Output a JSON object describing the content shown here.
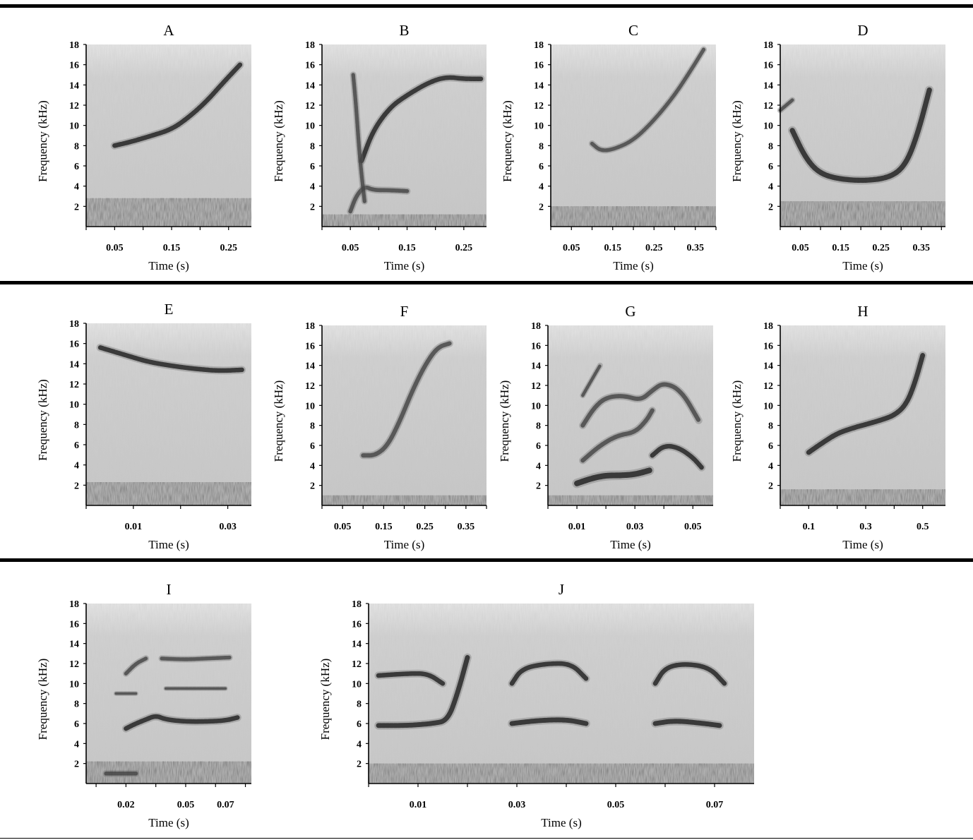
{
  "chart_data": [
    {
      "type": "heatmap",
      "panel": "A",
      "title": "A",
      "xlabel": "Time (s)",
      "ylabel": "Frequency (kHz)",
      "ylim": [
        0,
        18
      ],
      "xlim": [
        0,
        0.29
      ],
      "x_ticks": [
        0.05,
        0.15,
        0.25
      ],
      "x_tick_labels": [
        "0.05",
        "0.15",
        "0.25"
      ],
      "y_ticks": [
        2,
        4,
        6,
        8,
        10,
        12,
        14,
        16,
        18
      ],
      "traces": [
        {
          "points": [
            [
              0.05,
              8.0
            ],
            [
              0.08,
              8.4
            ],
            [
              0.11,
              8.9
            ],
            [
              0.15,
              9.6
            ],
            [
              0.18,
              10.8
            ],
            [
              0.21,
              12.3
            ],
            [
              0.24,
              14.2
            ],
            [
              0.27,
              16.0
            ]
          ],
          "weight": 1
        }
      ],
      "noise_band": [
        0,
        2.8
      ]
    },
    {
      "type": "heatmap",
      "panel": "B",
      "title": "B",
      "xlabel": "Time (s)",
      "ylabel": "Frequency (kHz)",
      "ylim": [
        0,
        18
      ],
      "xlim": [
        0,
        0.29
      ],
      "x_ticks": [
        0.05,
        0.15,
        0.25
      ],
      "x_tick_labels": [
        "0.05",
        "0.15",
        "0.25"
      ],
      "y_ticks": [
        2,
        4,
        6,
        8,
        10,
        12,
        14,
        16,
        18
      ],
      "traces": [
        {
          "points": [
            [
              0.07,
              6.5
            ],
            [
              0.09,
              9.5
            ],
            [
              0.12,
              11.8
            ],
            [
              0.15,
              13.0
            ],
            [
              0.19,
              14.3
            ],
            [
              0.22,
              14.8
            ],
            [
              0.25,
              14.6
            ],
            [
              0.28,
              14.6
            ]
          ],
          "weight": 1
        },
        {
          "points": [
            [
              0.05,
              1.5
            ],
            [
              0.06,
              3.0
            ],
            [
              0.075,
              4.0
            ],
            [
              0.09,
              3.6
            ],
            [
              0.12,
              3.6
            ],
            [
              0.15,
              3.5
            ]
          ],
          "weight": 0.8
        },
        {
          "points": [
            [
              0.055,
              15.0
            ],
            [
              0.06,
              12.0
            ],
            [
              0.065,
              8.0
            ],
            [
              0.07,
              5.0
            ],
            [
              0.075,
              2.5
            ]
          ],
          "weight": 0.7
        }
      ],
      "noise_band": [
        0,
        1.2
      ]
    },
    {
      "type": "heatmap",
      "panel": "C",
      "title": "C",
      "xlabel": "Time (s)",
      "ylabel": "Frequency (kHz)",
      "ylim": [
        0,
        18
      ],
      "xlim": [
        0,
        0.4
      ],
      "x_ticks": [
        0.05,
        0.15,
        0.25,
        0.35
      ],
      "x_tick_labels": [
        "0.05",
        "0.15",
        "0.25",
        "0.35"
      ],
      "y_ticks": [
        2,
        4,
        6,
        8,
        10,
        12,
        14,
        16,
        18
      ],
      "traces": [
        {
          "points": [
            [
              0.1,
              8.2
            ],
            [
              0.12,
              7.5
            ],
            [
              0.15,
              7.6
            ],
            [
              0.2,
              8.5
            ],
            [
              0.25,
              10.5
            ],
            [
              0.3,
              13.0
            ],
            [
              0.34,
              15.5
            ],
            [
              0.37,
              17.5
            ]
          ],
          "weight": 0.7
        }
      ],
      "noise_band": [
        0,
        2.0
      ]
    },
    {
      "type": "heatmap",
      "panel": "D",
      "title": "D",
      "xlabel": "Time (s)",
      "ylabel": "Frequency (kHz)",
      "ylim": [
        0,
        18
      ],
      "xlim": [
        0,
        0.41
      ],
      "x_ticks": [
        0.05,
        0.15,
        0.25,
        0.35
      ],
      "x_tick_labels": [
        "0.05",
        "0.15",
        "0.25",
        "0.35"
      ],
      "y_ticks": [
        2,
        4,
        6,
        8,
        10,
        12,
        14,
        16,
        18
      ],
      "traces": [
        {
          "points": [
            [
              0.03,
              9.5
            ],
            [
              0.06,
              7.0
            ],
            [
              0.09,
              5.5
            ],
            [
              0.13,
              4.8
            ],
            [
              0.2,
              4.5
            ],
            [
              0.27,
              4.8
            ],
            [
              0.31,
              6.0
            ],
            [
              0.34,
              9.0
            ],
            [
              0.37,
              13.5
            ]
          ],
          "weight": 1.2
        },
        {
          "points": [
            [
              0.0,
              11.5
            ],
            [
              0.03,
              12.5
            ]
          ],
          "weight": 0.6
        }
      ],
      "noise_band": [
        0,
        2.5
      ]
    },
    {
      "type": "heatmap",
      "panel": "E",
      "title": "E",
      "xlabel": "Time (s)",
      "ylabel": "Frequency (kHz)",
      "ylim": [
        0,
        18
      ],
      "xlim": [
        0,
        0.035
      ],
      "x_ticks": [
        0.01,
        0.03
      ],
      "x_tick_labels": [
        "0.01",
        "0.03"
      ],
      "y_ticks": [
        2,
        4,
        6,
        8,
        10,
        12,
        14,
        16,
        18
      ],
      "traces": [
        {
          "points": [
            [
              0.003,
              15.6
            ],
            [
              0.008,
              14.9
            ],
            [
              0.013,
              14.2
            ],
            [
              0.018,
              13.8
            ],
            [
              0.023,
              13.5
            ],
            [
              0.028,
              13.3
            ],
            [
              0.033,
              13.4
            ]
          ],
          "weight": 1
        }
      ],
      "noise_band": [
        0,
        2.3
      ]
    },
    {
      "type": "heatmap",
      "panel": "F",
      "title": "F",
      "xlabel": "Time (s)",
      "ylabel": "Frequency (kHz)",
      "ylim": [
        0,
        18
      ],
      "xlim": [
        0,
        0.4
      ],
      "x_ticks": [
        0.05,
        0.15,
        0.25,
        0.35
      ],
      "x_tick_labels": [
        "0.05",
        "0.15",
        "0.25",
        "0.35"
      ],
      "y_ticks": [
        2,
        4,
        6,
        8,
        10,
        12,
        14,
        16,
        18
      ],
      "traces": [
        {
          "points": [
            [
              0.1,
              5.0
            ],
            [
              0.13,
              5.0
            ],
            [
              0.16,
              6.0
            ],
            [
              0.19,
              8.5
            ],
            [
              0.22,
              11.5
            ],
            [
              0.25,
              14.0
            ],
            [
              0.28,
              15.8
            ],
            [
              0.31,
              16.2
            ]
          ],
          "weight": 0.9
        }
      ],
      "noise_band": [
        0,
        1.0
      ]
    },
    {
      "type": "heatmap",
      "panel": "G",
      "title": "G",
      "xlabel": "Time (s)",
      "ylabel": "Frequency (kHz)",
      "ylim": [
        0,
        18
      ],
      "xlim": [
        0,
        0.057
      ],
      "x_ticks": [
        0.01,
        0.03,
        0.05
      ],
      "x_tick_labels": [
        "0.01",
        "0.03",
        "0.05"
      ],
      "y_ticks": [
        2,
        4,
        6,
        8,
        10,
        12,
        14,
        16,
        18
      ],
      "traces": [
        {
          "points": [
            [
              0.01,
              2.2
            ],
            [
              0.015,
              2.7
            ],
            [
              0.02,
              3.0
            ],
            [
              0.025,
              3.0
            ],
            [
              0.03,
              3.1
            ],
            [
              0.035,
              3.5
            ]
          ],
          "weight": 1.4
        },
        {
          "points": [
            [
              0.036,
              5.0
            ],
            [
              0.04,
              6.0
            ],
            [
              0.045,
              5.8
            ],
            [
              0.05,
              4.8
            ],
            [
              0.053,
              3.8
            ]
          ],
          "weight": 1
        },
        {
          "points": [
            [
              0.012,
              4.5
            ],
            [
              0.018,
              6.0
            ],
            [
              0.024,
              7.0
            ],
            [
              0.03,
              7.3
            ],
            [
              0.034,
              8.5
            ],
            [
              0.036,
              9.5
            ]
          ],
          "weight": 0.9
        },
        {
          "points": [
            [
              0.012,
              8.0
            ],
            [
              0.016,
              9.8
            ],
            [
              0.02,
              10.8
            ],
            [
              0.026,
              11.0
            ],
            [
              0.032,
              10.5
            ],
            [
              0.036,
              11.5
            ],
            [
              0.04,
              12.3
            ],
            [
              0.046,
              11.5
            ],
            [
              0.052,
              8.5
            ]
          ],
          "weight": 0.9
        },
        {
          "points": [
            [
              0.012,
              11.0
            ],
            [
              0.015,
              12.5
            ],
            [
              0.018,
              14.0
            ]
          ],
          "weight": 0.5
        }
      ],
      "noise_band": [
        0,
        1.0
      ]
    },
    {
      "type": "heatmap",
      "panel": "H",
      "title": "H",
      "xlabel": "Time (s)",
      "ylabel": "Frequency (kHz)",
      "ylim": [
        0,
        18
      ],
      "xlim": [
        0,
        0.58
      ],
      "x_ticks": [
        0.1,
        0.3,
        0.5
      ],
      "x_tick_labels": [
        "0.1",
        "0.3",
        "0.5"
      ],
      "y_ticks": [
        2,
        4,
        6,
        8,
        10,
        12,
        14,
        16,
        18
      ],
      "traces": [
        {
          "points": [
            [
              0.1,
              5.3
            ],
            [
              0.15,
              6.3
            ],
            [
              0.2,
              7.2
            ],
            [
              0.25,
              7.7
            ],
            [
              0.3,
              8.1
            ],
            [
              0.35,
              8.5
            ],
            [
              0.4,
              9.0
            ],
            [
              0.44,
              10.0
            ],
            [
              0.47,
              12.0
            ],
            [
              0.5,
              15.0
            ]
          ],
          "weight": 1.1
        }
      ],
      "noise_band": [
        0,
        1.6
      ]
    },
    {
      "type": "heatmap",
      "panel": "I",
      "title": "I",
      "xlabel": "Time (s)",
      "ylabel": "Frequency (kHz)",
      "ylim": [
        0,
        18
      ],
      "xlim": [
        0,
        0.083
      ],
      "x_ticks": [
        0.02,
        0.05,
        0.07
      ],
      "x_tick_labels": [
        "0.02",
        "0.05",
        "0.07"
      ],
      "y_ticks": [
        2,
        4,
        6,
        8,
        10,
        12,
        14,
        16,
        18
      ],
      "traces": [
        {
          "points": [
            [
              0.02,
              5.5
            ],
            [
              0.025,
              6.0
            ],
            [
              0.03,
              6.4
            ],
            [
              0.035,
              6.8
            ],
            [
              0.04,
              6.4
            ],
            [
              0.05,
              6.2
            ],
            [
              0.06,
              6.2
            ],
            [
              0.07,
              6.3
            ],
            [
              0.076,
              6.6
            ]
          ],
          "weight": 1
        },
        {
          "points": [
            [
              0.02,
              11.0
            ],
            [
              0.025,
              12.0
            ],
            [
              0.03,
              12.5
            ]
          ],
          "weight": 0.7
        },
        {
          "points": [
            [
              0.038,
              12.5
            ],
            [
              0.05,
              12.4
            ],
            [
              0.06,
              12.5
            ],
            [
              0.072,
              12.6
            ]
          ],
          "weight": 0.7
        },
        {
          "points": [
            [
              0.04,
              9.5
            ],
            [
              0.05,
              9.5
            ],
            [
              0.07,
              9.5
            ]
          ],
          "weight": 0.3
        },
        {
          "points": [
            [
              0.015,
              9.0
            ],
            [
              0.025,
              9.0
            ]
          ],
          "weight": 0.3
        },
        {
          "points": [
            [
              0.01,
              1.0
            ],
            [
              0.025,
              1.0
            ]
          ],
          "weight": 0.8
        }
      ],
      "noise_band": [
        0,
        2.2
      ]
    },
    {
      "type": "heatmap",
      "panel": "J",
      "title": "J",
      "xlabel": "Time (s)",
      "ylabel": "Frequency (kHz)",
      "ylim": [
        0,
        18
      ],
      "xlim": [
        0,
        0.078
      ],
      "x_ticks": [
        0.01,
        0.03,
        0.05,
        0.07
      ],
      "x_tick_labels": [
        "0.01",
        "0.03",
        "0.05",
        "0.07"
      ],
      "y_ticks": [
        2,
        4,
        6,
        8,
        10,
        12,
        14,
        16,
        18
      ],
      "traces": [
        {
          "points": [
            [
              0.002,
              5.8
            ],
            [
              0.008,
              5.8
            ],
            [
              0.013,
              6.0
            ],
            [
              0.016,
              6.3
            ],
            [
              0.018,
              9.0
            ],
            [
              0.02,
              12.6
            ]
          ],
          "weight": 1.1
        },
        {
          "points": [
            [
              0.002,
              10.8
            ],
            [
              0.008,
              11.0
            ],
            [
              0.012,
              11.0
            ],
            [
              0.015,
              10.0
            ]
          ],
          "weight": 1
        },
        {
          "points": [
            [
              0.029,
              6.0
            ],
            [
              0.034,
              6.3
            ],
            [
              0.04,
              6.4
            ],
            [
              0.044,
              6.0
            ]
          ],
          "weight": 1.1
        },
        {
          "points": [
            [
              0.029,
              10.0
            ],
            [
              0.031,
              11.5
            ],
            [
              0.036,
              12.0
            ],
            [
              0.041,
              12.0
            ],
            [
              0.044,
              10.5
            ]
          ],
          "weight": 1
        },
        {
          "points": [
            [
              0.058,
              6.0
            ],
            [
              0.062,
              6.3
            ],
            [
              0.068,
              6.0
            ],
            [
              0.071,
              5.8
            ]
          ],
          "weight": 1.1
        },
        {
          "points": [
            [
              0.058,
              10.0
            ],
            [
              0.06,
              11.6
            ],
            [
              0.064,
              12.0
            ],
            [
              0.069,
              11.6
            ],
            [
              0.072,
              10.0
            ]
          ],
          "weight": 1
        }
      ],
      "noise_band": [
        0,
        2.0
      ]
    }
  ]
}
